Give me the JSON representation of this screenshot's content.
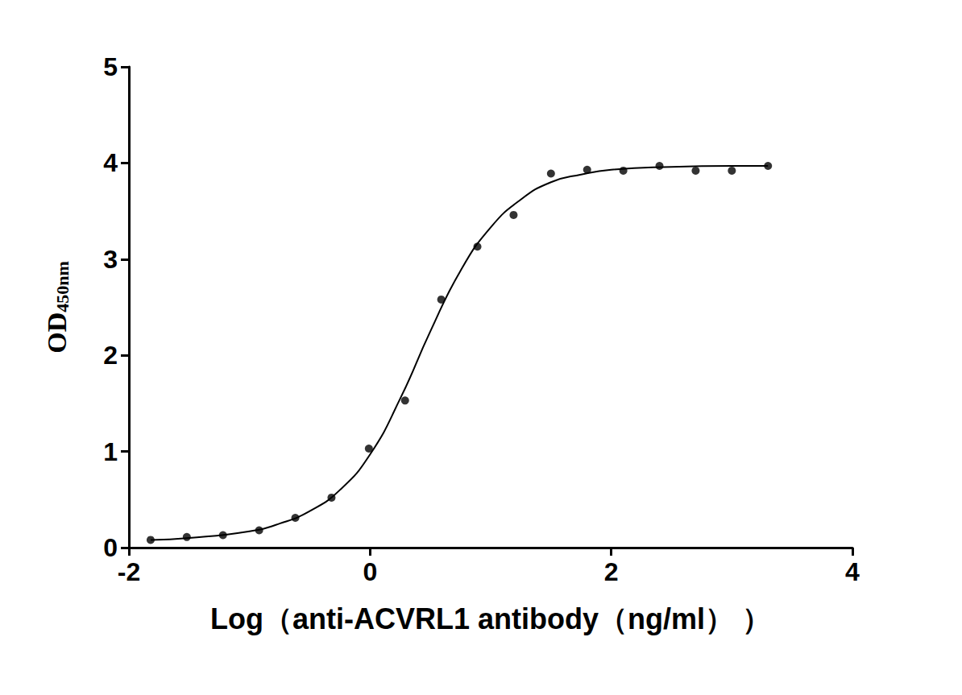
{
  "chart_data": {
    "type": "scatter",
    "x_label": "Log（anti-ACVRL1 antibody（ng/ml） ）",
    "y_label": {
      "text": "OD",
      "subscript": "450nm"
    },
    "xlim": [
      -2,
      4
    ],
    "xticks": [
      -2,
      0,
      2,
      4
    ],
    "ylim": [
      0,
      5
    ],
    "yticks": [
      0,
      1,
      2,
      3,
      4,
      5
    ],
    "grid": false,
    "series": [
      {
        "type": "scatter",
        "color": "#000000",
        "marker": "circle",
        "x": [
          -1.82,
          -1.52,
          -1.22,
          -0.92,
          -0.62,
          -0.32,
          -0.01,
          0.29,
          0.59,
          0.89,
          1.19,
          1.5,
          1.8,
          2.1,
          2.4,
          2.7,
          3.0,
          3.3
        ],
        "values": [
          0.08,
          0.11,
          0.13,
          0.18,
          0.31,
          0.52,
          1.03,
          1.53,
          2.58,
          3.13,
          3.46,
          3.89,
          3.93,
          3.92,
          3.97,
          3.92,
          3.92,
          3.97
        ]
      },
      {
        "type": "line",
        "color": "#000000",
        "line_style": "solid",
        "x": [
          -1.82,
          -1.5,
          -1.0,
          -0.75,
          -0.5,
          -0.25,
          0.0,
          0.25,
          0.5,
          0.75,
          1.0,
          1.25,
          1.5,
          1.75,
          2.0,
          2.5,
          3.0,
          3.3
        ],
        "values": [
          0.08,
          0.1,
          0.17,
          0.25,
          0.38,
          0.6,
          0.97,
          1.55,
          2.25,
          2.88,
          3.33,
          3.62,
          3.8,
          3.88,
          3.93,
          3.96,
          3.97,
          3.97
        ]
      }
    ]
  }
}
